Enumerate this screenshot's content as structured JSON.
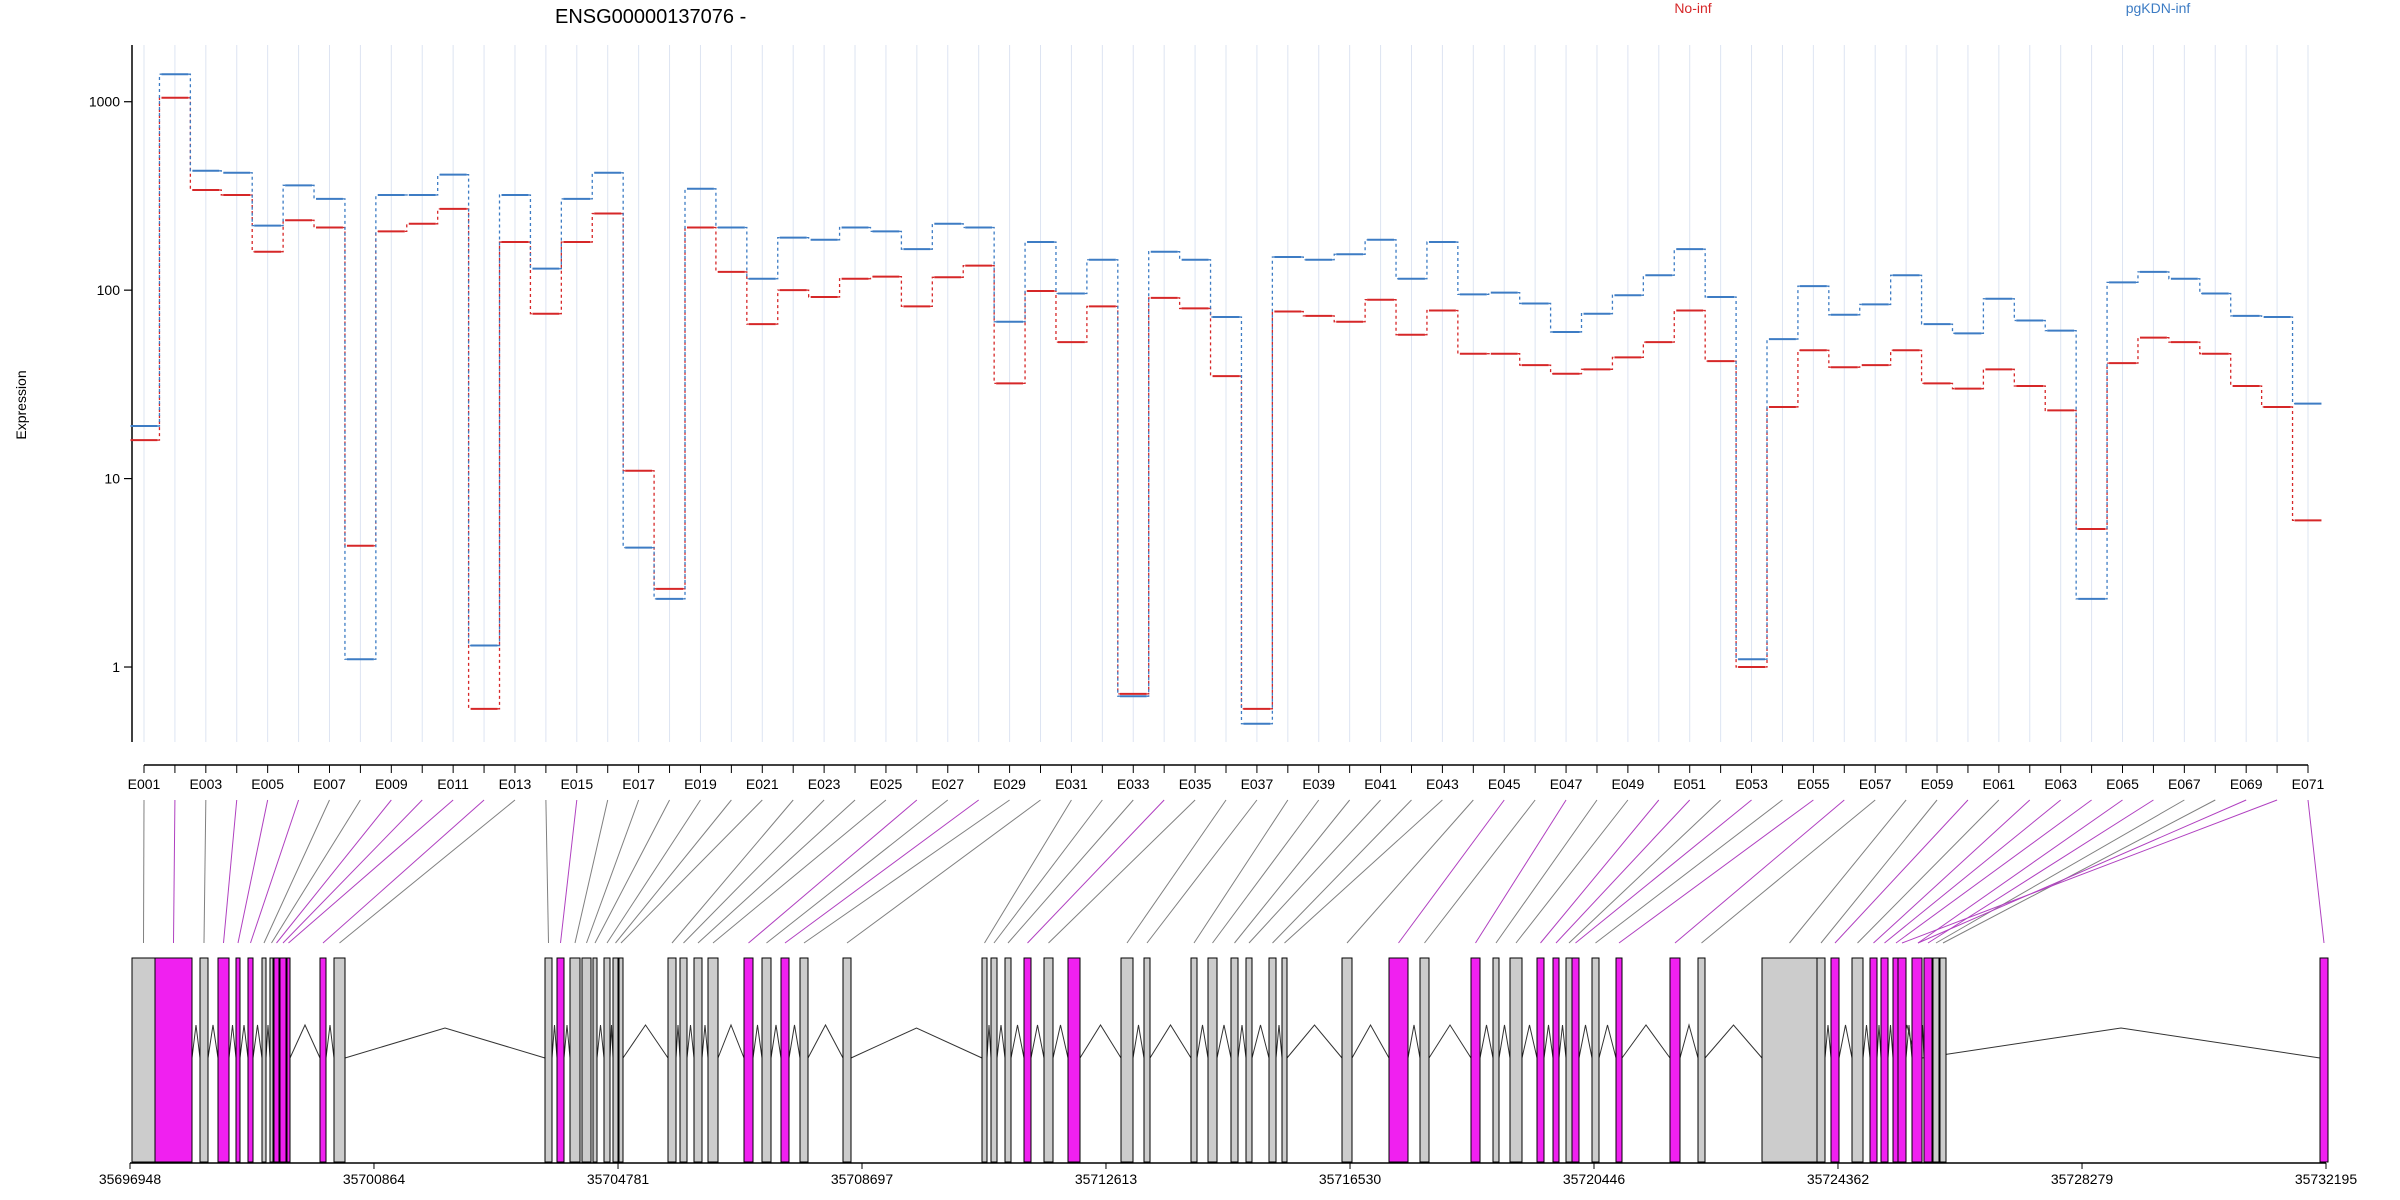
{
  "chart_data": {
    "type": "line",
    "title": "ENSG00000137076 -",
    "ylabel": "Expression",
    "yscale": "log",
    "ylim": [
      0.4,
      2000
    ],
    "yticks": [
      1,
      10,
      100,
      1000
    ],
    "grid": true,
    "legend_position": "top-right",
    "categories": [
      "E001",
      "E002",
      "E003",
      "E004",
      "E005",
      "E006",
      "E007",
      "E008",
      "E009",
      "E010",
      "E011",
      "E012",
      "E013",
      "E014",
      "E015",
      "E016",
      "E017",
      "E018",
      "E019",
      "E020",
      "E021",
      "E022",
      "E023",
      "E024",
      "E025",
      "E026",
      "E027",
      "E028",
      "E029",
      "E030",
      "E031",
      "E032",
      "E033",
      "E034",
      "E035",
      "E036",
      "E037",
      "E038",
      "E039",
      "E040",
      "E041",
      "E042",
      "E043",
      "E044",
      "E045",
      "E046",
      "E047",
      "E048",
      "E049",
      "E050",
      "E051",
      "E052",
      "E053",
      "E054",
      "E055",
      "E056",
      "E057",
      "E058",
      "E059",
      "E060",
      "E061",
      "E062",
      "E063",
      "E064",
      "E065",
      "E066",
      "E067",
      "E068",
      "E069",
      "E070",
      "E071"
    ],
    "series": [
      {
        "name": "No-inf",
        "color": "#d62728",
        "values": [
          16,
          1050,
          340,
          320,
          160,
          235,
          215,
          4.4,
          205,
          225,
          270,
          0.6,
          180,
          75,
          180,
          255,
          11,
          2.6,
          215,
          125,
          66,
          100,
          92,
          115,
          118,
          82,
          117,
          135,
          32,
          99,
          53,
          82,
          0.72,
          91,
          80,
          35,
          0.6,
          77,
          73,
          68,
          89,
          58,
          78,
          46,
          46,
          40,
          36,
          38,
          44,
          53,
          78,
          42,
          1.0,
          24,
          48,
          39,
          40,
          48,
          32,
          30,
          38,
          31,
          23,
          5.4,
          41,
          56,
          53,
          46,
          31,
          24,
          6.0
        ]
      },
      {
        "name": "pgKDN-inf",
        "color": "#3d7cc4",
        "values": [
          19,
          1400,
          430,
          420,
          220,
          360,
          305,
          1.1,
          320,
          320,
          410,
          1.3,
          320,
          130,
          305,
          420,
          4.3,
          2.3,
          345,
          215,
          115,
          190,
          185,
          215,
          205,
          165,
          225,
          215,
          68,
          180,
          96,
          145,
          0.7,
          160,
          145,
          72,
          0.5,
          150,
          145,
          155,
          185,
          115,
          180,
          95,
          97,
          85,
          60,
          75,
          94,
          120,
          165,
          92,
          1.1,
          55,
          105,
          74,
          84,
          120,
          66,
          59,
          90,
          69,
          61,
          2.3,
          110,
          125,
          115,
          96,
          73,
          72,
          25
        ]
      }
    ]
  },
  "gene_model": {
    "coordinates": [
      "35696948",
      "35700864",
      "35704781",
      "35708697",
      "35712613",
      "35716530",
      "35720446",
      "35724362",
      "35728279",
      "35732195"
    ],
    "colors": {
      "exon_highlight": "#f020f0",
      "exon_plain": "#cccccc",
      "link_highlight": "#b040c0",
      "link_plain": "#808080"
    },
    "exon_highlight": [
      0,
      1,
      0,
      1,
      1,
      1,
      0,
      0,
      1,
      1,
      1,
      1,
      0,
      0,
      1,
      0,
      0,
      0,
      0,
      0,
      0,
      0,
      0,
      0,
      0,
      1,
      0,
      1,
      0,
      0,
      0,
      0,
      0,
      1,
      0,
      1,
      0,
      0,
      0,
      0,
      0,
      0,
      0,
      0,
      0,
      1,
      0,
      1,
      0,
      0,
      1,
      1,
      0,
      1,
      0,
      1,
      1,
      0,
      0,
      0,
      1,
      0,
      1,
      1,
      1,
      1,
      1,
      0,
      0,
      1,
      1,
      1,
      1
    ]
  }
}
